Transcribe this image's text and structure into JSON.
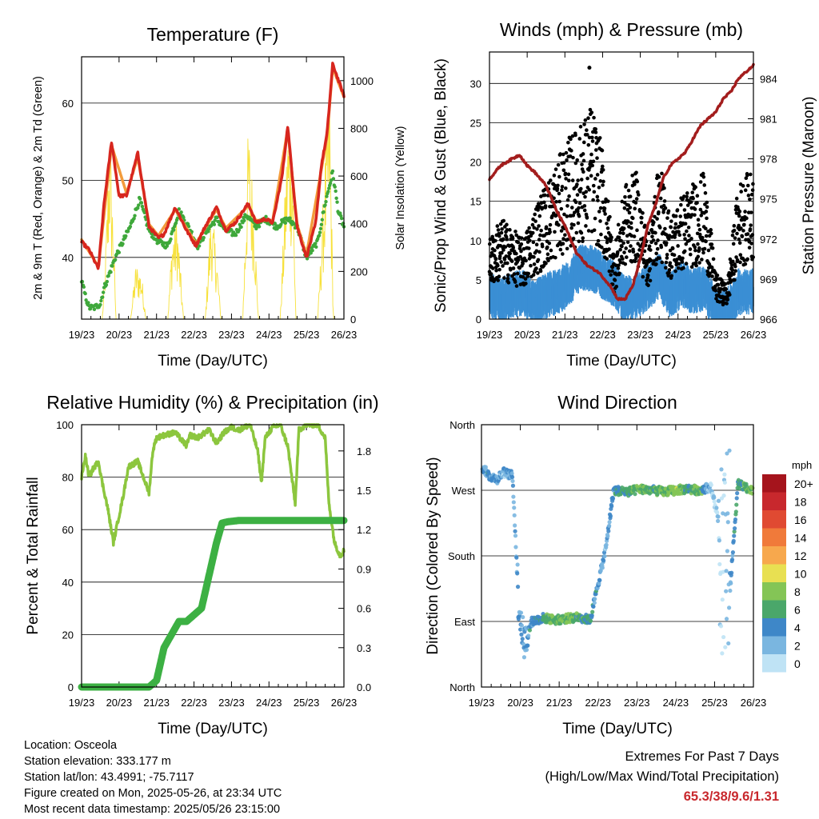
{
  "chart_data": [
    {
      "type": "line",
      "title": "Temperature (F)",
      "xlabel": "Time (Day/UTC)",
      "ylabel": "2m & 9m T (Red, Orange) & 2m Td (Green)",
      "y2label": "Solar Insolation (Yellow)",
      "ylim": [
        32,
        66
      ],
      "y2lim": [
        0,
        1100
      ],
      "xlim": [
        0,
        7
      ],
      "xticks": [
        "19/23",
        "20/23",
        "21/23",
        "22/23",
        "23/23",
        "24/23",
        "25/23",
        "26/23"
      ],
      "yticks": [
        40,
        50,
        60
      ],
      "y2ticks": [
        0,
        200,
        400,
        600,
        800,
        1000
      ],
      "grid": true,
      "series": [
        {
          "name": "2m T",
          "color": "#d7261e",
          "x": [
            0,
            0.2,
            0.45,
            0.6,
            0.8,
            1.0,
            1.2,
            1.5,
            1.8,
            2.05,
            2.2,
            2.5,
            2.8,
            3.05,
            3.3,
            3.6,
            3.85,
            4.1,
            4.45,
            4.65,
            4.9,
            5.1,
            5.35,
            5.5,
            5.75,
            6.0,
            6.25,
            6.4,
            6.55,
            6.7,
            6.78,
            6.85,
            7.0
          ],
          "y": [
            42,
            41,
            38.5,
            47,
            55,
            48,
            48,
            53.5,
            44,
            42.5,
            43,
            46.5,
            43.5,
            41.5,
            44,
            46.5,
            43.5,
            44.5,
            47,
            44.5,
            45,
            44.5,
            50.5,
            57,
            44,
            40,
            44.5,
            52,
            56,
            65,
            64,
            63,
            61
          ]
        },
        {
          "name": "9m T",
          "color": "#f39c3c",
          "x": [
            0,
            0.45,
            0.8,
            1.2,
            1.5,
            1.8,
            2.05,
            2.5,
            2.8,
            3.05,
            3.6,
            3.85,
            4.45,
            4.65,
            5.1,
            5.5,
            5.75,
            6.0,
            6.55,
            6.7,
            7.0
          ],
          "y": [
            42.3,
            38.8,
            54.5,
            48.3,
            53,
            44.3,
            42.8,
            46.2,
            43.8,
            41.8,
            46.2,
            43.8,
            46.7,
            44.8,
            44.8,
            56.6,
            44.3,
            40.3,
            55.6,
            64.6,
            60.8
          ]
        },
        {
          "name": "2m Td",
          "color": "#3fa83b",
          "x": [
            0,
            0.1,
            0.2,
            0.35,
            0.5,
            0.6,
            0.75,
            0.9,
            1.1,
            1.3,
            1.55,
            1.8,
            2.05,
            2.3,
            2.6,
            2.85,
            3.1,
            3.35,
            3.6,
            3.85,
            4.1,
            4.4,
            4.65,
            4.9,
            5.2,
            5.5,
            5.75,
            6.0,
            6.3,
            6.5,
            6.7,
            6.85,
            7.0
          ],
          "y": [
            37,
            35,
            33.5,
            33.5,
            34,
            36,
            38,
            40,
            42,
            44,
            47.5,
            43.5,
            42,
            41.5,
            46,
            44,
            41.5,
            43.5,
            45,
            43.5,
            43,
            45.5,
            44,
            45,
            44,
            45,
            44,
            40,
            42,
            47,
            51,
            46,
            44
          ]
        },
        {
          "name": "Solar Insolation",
          "color": "#f7e13c",
          "axis": "y2",
          "x": [
            0.55,
            0.62,
            0.75,
            0.85,
            0.92,
            1.3,
            1.45,
            1.6,
            1.72,
            2.3,
            2.42,
            2.55,
            2.72,
            3.3,
            3.45,
            3.6,
            3.72,
            4.3,
            4.45,
            4.6,
            4.72,
            5.3,
            5.5,
            5.62,
            5.72,
            6.3,
            6.5,
            6.62,
            6.72
          ],
          "y": [
            0,
            200,
            850,
            400,
            0,
            0,
            240,
            200,
            0,
            0,
            380,
            450,
            0,
            0,
            480,
            300,
            0,
            0,
            850,
            500,
            0,
            0,
            860,
            820,
            0,
            0,
            700,
            1000,
            0
          ]
        }
      ]
    },
    {
      "type": "scatter",
      "title": "Winds (mph) & Pressure (mb)",
      "xlabel": "Time (Day/UTC)",
      "ylabel": "Sonic/Prop Wind & Gust (Blue, Black)",
      "y2label": "Station Pressure (Maroon)",
      "ylim": [
        0,
        34
      ],
      "y2lim": [
        966,
        986
      ],
      "xlim": [
        0,
        7
      ],
      "xticks": [
        "19/23",
        "20/23",
        "21/23",
        "22/23",
        "23/23",
        "24/23",
        "25/23",
        "26/23"
      ],
      "yticks": [
        0,
        5,
        10,
        15,
        20,
        25,
        30
      ],
      "y2ticks": [
        966,
        969,
        972,
        975,
        978,
        981,
        984
      ],
      "grid": true,
      "series": [
        {
          "name": "Wind",
          "color": "#3b8fd4",
          "x": [
            0,
            0.3,
            0.6,
            0.9,
            1.2,
            1.5,
            1.8,
            2.1,
            2.4,
            2.7,
            3.0,
            3.3,
            3.6,
            3.9,
            4.2,
            4.5,
            4.8,
            5.1,
            5.4,
            5.7,
            6.0,
            6.3,
            6.6,
            6.9
          ],
          "y": [
            3.5,
            3,
            3.5,
            4,
            2.5,
            3.5,
            4,
            5,
            7,
            7,
            6,
            5,
            3,
            3.5,
            4.5,
            6,
            3.5,
            5,
            4,
            4.5,
            1.5,
            1.5,
            4,
            4
          ]
        },
        {
          "name": "Gust",
          "color": "#000000",
          "x": [
            0,
            0.3,
            0.6,
            0.9,
            1.2,
            1.5,
            1.8,
            2.1,
            2.4,
            2.7,
            3.0,
            3.3,
            3.6,
            3.9,
            4.2,
            4.5,
            4.8,
            5.1,
            5.4,
            5.7,
            6.0,
            6.3,
            6.6,
            6.9,
            2.65
          ],
          "y": [
            7,
            9,
            8,
            7,
            10,
            12,
            14,
            16,
            17,
            19,
            15,
            6,
            12,
            13,
            7,
            14,
            9,
            11,
            12,
            13,
            4,
            3,
            12,
            13,
            32
          ]
        },
        {
          "name": "Pressure",
          "color": "#a31d1d",
          "axis": "y2",
          "x": [
            0,
            0.3,
            0.6,
            0.8,
            1.0,
            1.2,
            1.5,
            1.8,
            2.0,
            2.3,
            2.6,
            2.9,
            3.2,
            3.4,
            3.6,
            3.8,
            4.0,
            4.2,
            4.4,
            4.6,
            4.8,
            5.0,
            5.2,
            5.4,
            5.6,
            5.8,
            6.0,
            6.2,
            6.4,
            6.6,
            6.8,
            7.0
          ],
          "y": [
            976.5,
            977.5,
            978,
            978.3,
            977.5,
            977,
            976,
            974,
            973,
            971,
            970,
            969.5,
            968.5,
            967.5,
            967.5,
            968.5,
            970.5,
            973,
            974.5,
            976.5,
            977.5,
            978,
            978.5,
            979.5,
            980.5,
            981,
            981.5,
            982.5,
            983,
            984,
            984.5,
            985
          ]
        }
      ]
    },
    {
      "type": "line",
      "title": "Relative Humidity (%) & Precipitation (in)",
      "xlabel": "Time (Day/UTC)",
      "ylabel": "Percent & Total Rainfall",
      "ylim": [
        0,
        100
      ],
      "y2lim": [
        0,
        2.0
      ],
      "xlim": [
        0,
        7
      ],
      "xticks": [
        "19/23",
        "20/23",
        "21/23",
        "22/23",
        "23/23",
        "24/23",
        "25/23",
        "26/23"
      ],
      "yticks": [
        0,
        20,
        40,
        60,
        80,
        100
      ],
      "y2ticks": [
        "0.0",
        "0.3",
        "0.6",
        "0.9",
        "1.2",
        "1.5",
        "1.8"
      ],
      "grid": true,
      "series": [
        {
          "name": "Relative Humidity",
          "color": "#8cc63e",
          "x": [
            0,
            0.1,
            0.2,
            0.3,
            0.45,
            0.55,
            0.7,
            0.85,
            0.95,
            1.1,
            1.25,
            1.5,
            1.65,
            1.8,
            1.9,
            2.0,
            2.2,
            2.5,
            2.8,
            2.9,
            3.1,
            3.4,
            3.6,
            3.8,
            4.0,
            4.2,
            4.5,
            4.7,
            4.8,
            4.9,
            5.1,
            5.3,
            5.5,
            5.7,
            5.8,
            6.0,
            6.3,
            6.5,
            6.6,
            6.75,
            6.9,
            7.0
          ],
          "y": [
            80,
            88,
            80,
            83,
            86,
            78,
            68,
            55,
            62,
            72,
            84,
            86,
            80,
            74,
            90,
            95,
            96,
            97,
            92,
            96,
            95,
            98,
            93,
            97,
            99,
            98,
            100,
            90,
            78,
            95,
            99,
            100,
            92,
            70,
            98,
            100,
            100,
            95,
            70,
            55,
            50,
            52
          ]
        },
        {
          "name": "Total Rainfall",
          "color": "#3cb043",
          "axis": "y2",
          "x": [
            0,
            1.0,
            1.8,
            2.0,
            2.2,
            2.4,
            2.6,
            2.8,
            3.0,
            3.2,
            3.4,
            3.6,
            3.75,
            3.9,
            4.2,
            4.6,
            5.0,
            5.5,
            6.0,
            6.5,
            7.0
          ],
          "y": [
            0,
            0,
            0,
            0.05,
            0.3,
            0.4,
            0.5,
            0.5,
            0.55,
            0.6,
            0.85,
            1.1,
            1.25,
            1.26,
            1.27,
            1.27,
            1.27,
            1.27,
            1.27,
            1.27,
            1.27
          ]
        }
      ]
    },
    {
      "type": "scatter",
      "title": "Wind Direction",
      "xlabel": "Time (Day/UTC)",
      "ylabel": "Direction (Colored By Speed)",
      "xlim": [
        0,
        7
      ],
      "xticks": [
        "19/23",
        "20/23",
        "21/23",
        "22/23",
        "23/23",
        "24/23",
        "25/23",
        "26/23"
      ],
      "yticks": [
        "North",
        "East",
        "South",
        "West",
        "North"
      ],
      "ylim_deg": [
        0,
        360
      ],
      "grid": true,
      "colorbar": {
        "title": "mph",
        "labels": [
          "20+",
          "18",
          "16",
          "14",
          "12",
          "10",
          "8",
          "6",
          "4",
          "2",
          "0"
        ],
        "colors": [
          "#a5141c",
          "#c8282d",
          "#e04a32",
          "#f07a3a",
          "#f7a84d",
          "#e8e052",
          "#84c556",
          "#4aa76a",
          "#3e87c8",
          "#7ab6e0",
          "#bfe3f5"
        ]
      },
      "series": [
        {
          "name": "Direction",
          "x": [
            0.05,
            0.2,
            0.4,
            0.55,
            0.8,
            0.95,
            1.0,
            1.1,
            1.3,
            1.6,
            1.9,
            2.2,
            2.5,
            2.8,
            3.2,
            3.4,
            3.8,
            4.1,
            4.4,
            4.7,
            5.0,
            5.3,
            5.6,
            5.9,
            6.1,
            6.2,
            6.3,
            6.6,
            6.9
          ],
          "y": [
            300,
            290,
            285,
            295,
            290,
            120,
            100,
            60,
            90,
            95,
            92,
            94,
            96,
            92,
            190,
            270,
            268,
            272,
            270,
            268,
            270,
            272,
            270,
            275,
            230,
            180,
            60,
            280,
            270
          ],
          "speed": [
            3,
            4,
            3,
            2,
            3,
            2,
            4,
            3,
            4,
            5,
            7,
            7,
            6,
            5,
            2,
            4,
            6,
            7,
            6,
            7,
            8,
            5,
            7,
            1,
            1,
            1,
            1,
            5,
            7
          ]
        }
      ]
    }
  ],
  "info": {
    "location": "Location: Osceola",
    "elevation": "Station elevation: 333.177 m",
    "latlon": "Station lat/lon: 43.4991; -75.7117",
    "created": "Figure created on Mon, 2025-05-26, at 23:34 UTC",
    "timestamp": "Most recent data timestamp: 2025/05/26 23:15:00"
  },
  "extremes": {
    "title": "Extremes For Past 7 Days",
    "subtitle": "(High/Low/Max Wind/Total Precipitation)",
    "values": "65.3/38/9.6/1.31"
  }
}
